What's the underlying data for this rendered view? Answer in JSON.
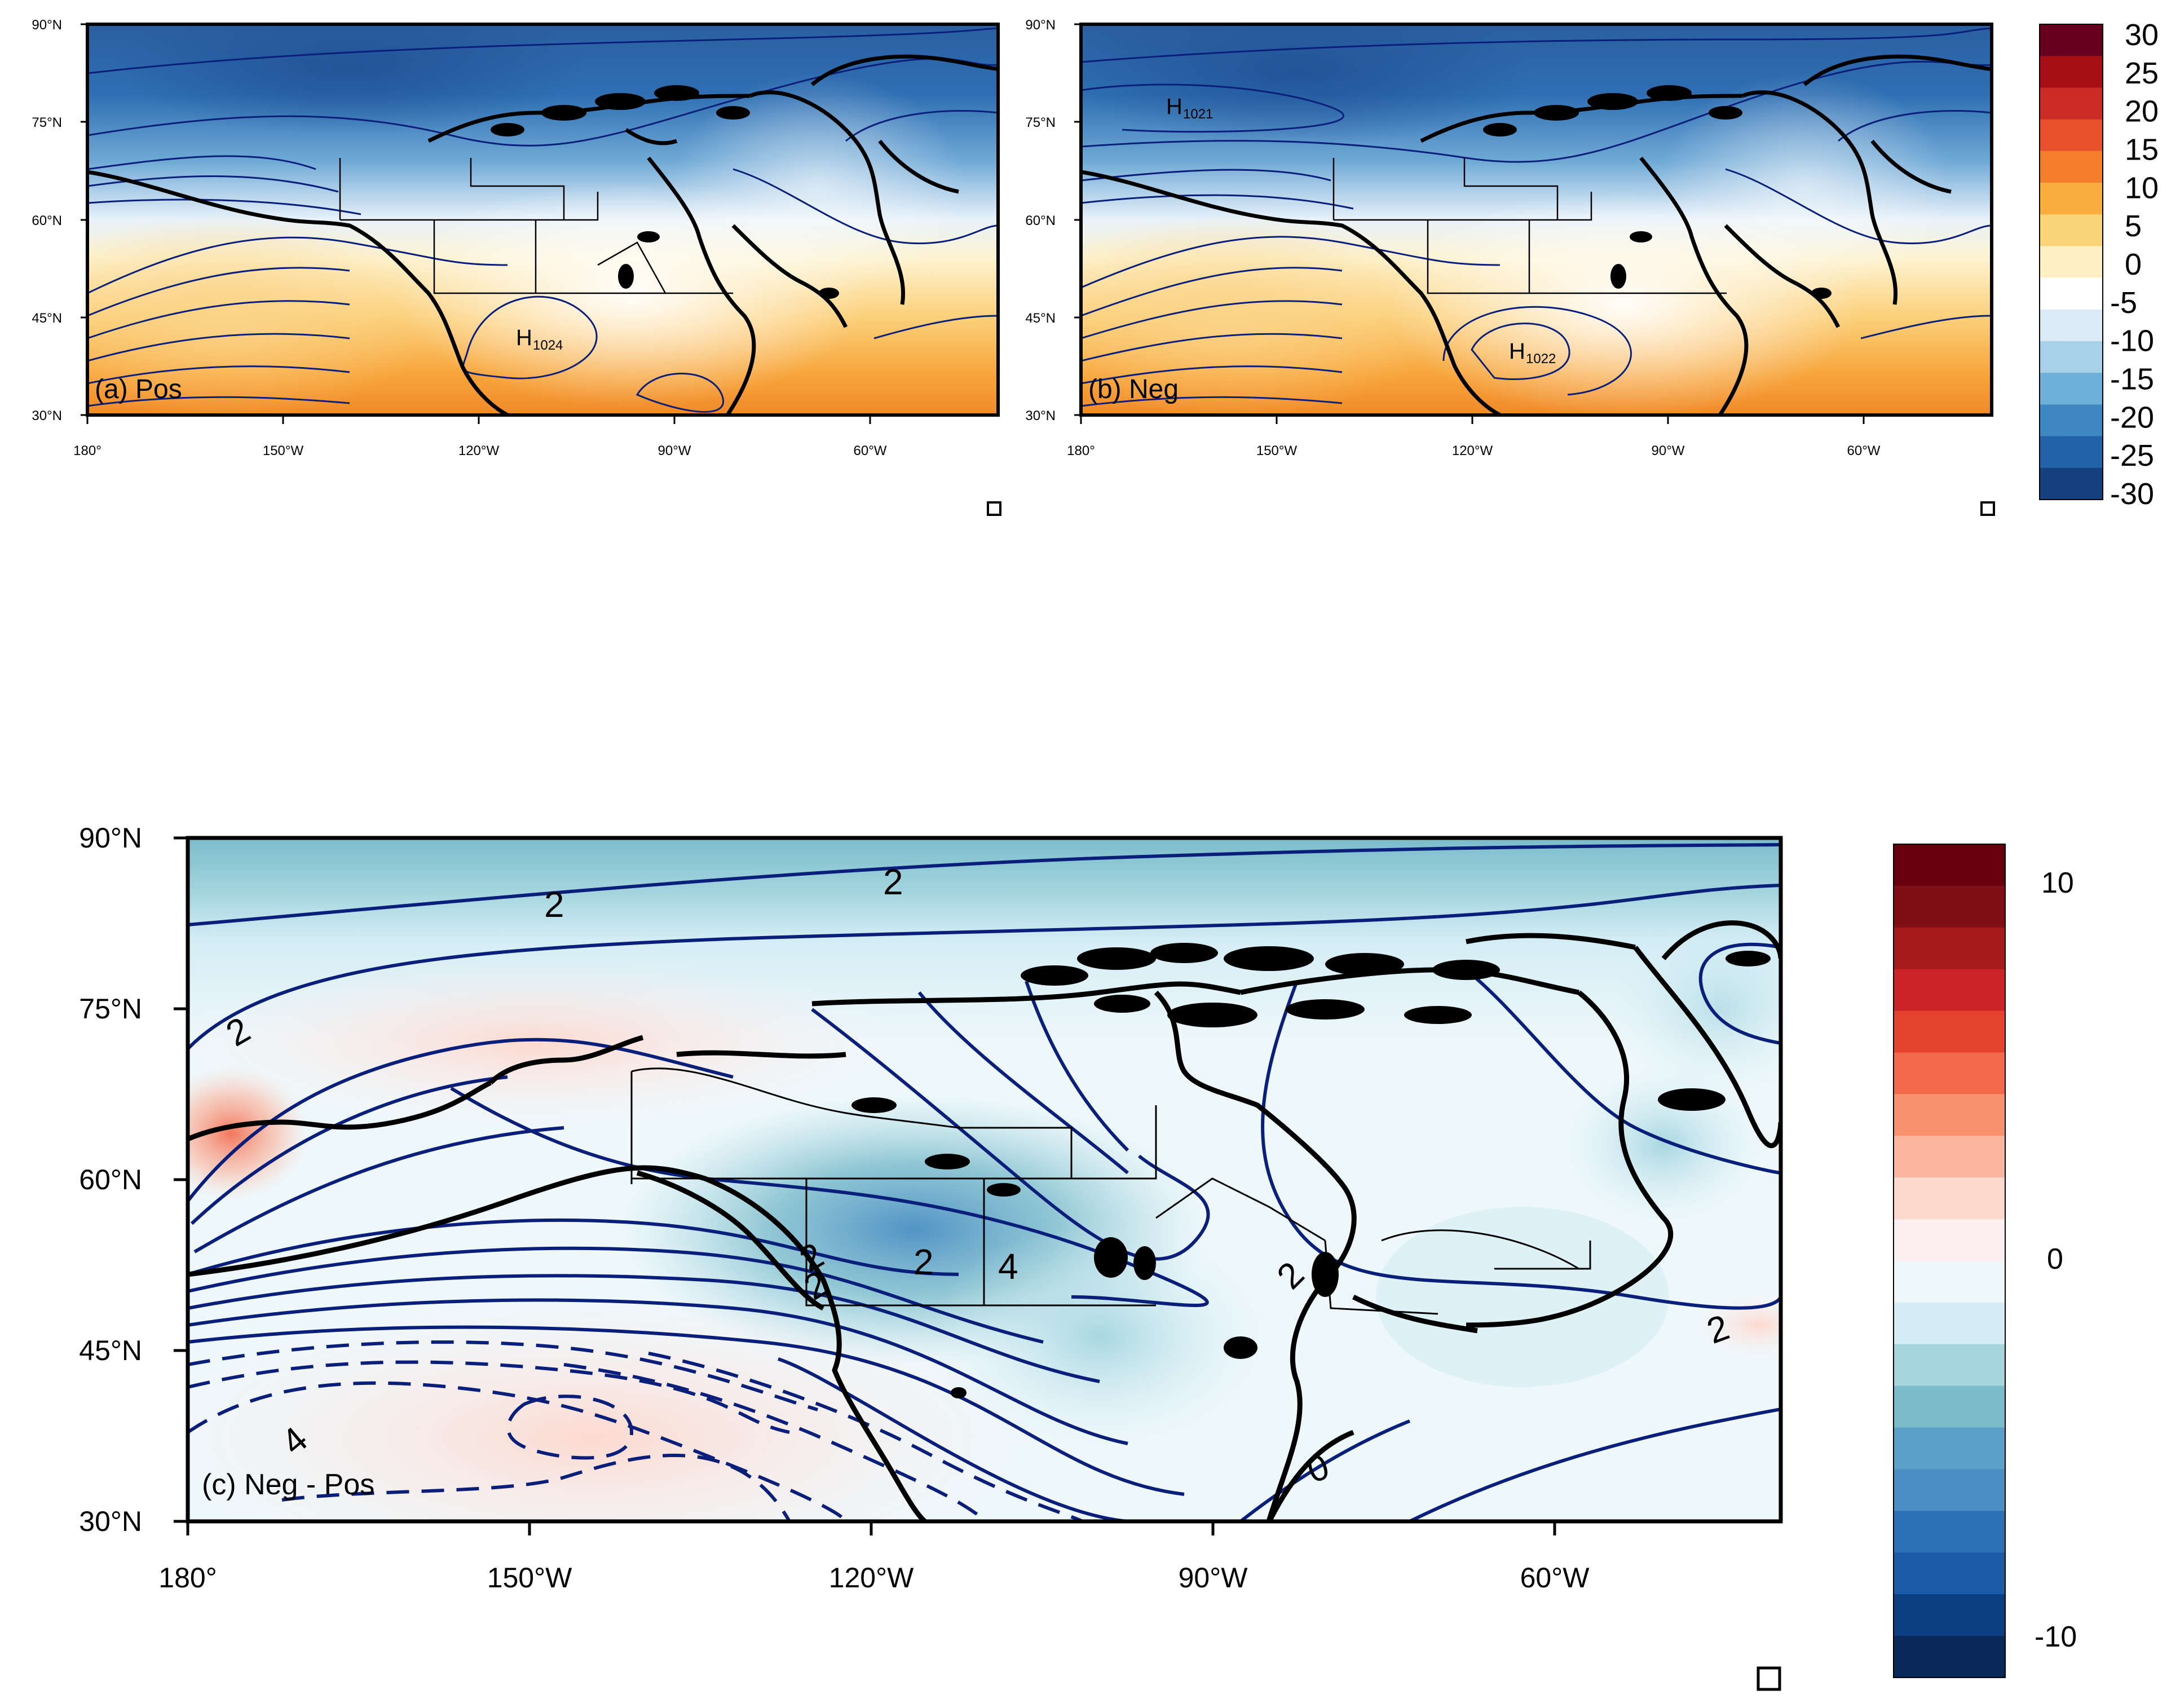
{
  "panels": {
    "a": {
      "label": "(a) Pos",
      "high_label": "H",
      "high_value": "1024"
    },
    "b": {
      "label": "(b) Neg",
      "high_labels": [
        {
          "label": "H",
          "value": "1021"
        },
        {
          "label": "H",
          "value": "1022"
        }
      ]
    },
    "c": {
      "label": "(c) Neg - Pos"
    }
  },
  "small_axes": {
    "lat_ticks": [
      "90°N",
      "75°N",
      "60°N",
      "45°N",
      "30°N"
    ],
    "lon_ticks": [
      "180°",
      "150°W",
      "120°W",
      "90°W",
      "60°W"
    ]
  },
  "large_axes": {
    "lat_ticks": [
      "90°N",
      "75°N",
      "60°N",
      "45°N",
      "30°N"
    ],
    "lon_ticks": [
      "180°",
      "150°W",
      "120°W",
      "90°W",
      "60°W"
    ]
  },
  "colorbar_top": {
    "labels": [
      "30",
      "25",
      "20",
      "15",
      "10",
      "5",
      "0",
      "-5",
      "-10",
      "-15",
      "-20",
      "-25",
      "-30"
    ],
    "colors": [
      "#67001f",
      "#a50f15",
      "#cb2d26",
      "#e8502c",
      "#f47e2c",
      "#f9ad3d",
      "#fcd478",
      "#fdf0c2",
      "#ffffff",
      "#dcecf6",
      "#a8d0e8",
      "#6fb0d9",
      "#3f87c2",
      "#2262a6",
      "#163f7d"
    ]
  },
  "colorbar_bottom": {
    "labels": [
      "10",
      "0",
      "-10"
    ],
    "colors": [
      "#67000d",
      "#7f0f14",
      "#a61a1c",
      "#cb2327",
      "#e6432f",
      "#f2694a",
      "#f7916e",
      "#fbb6a0",
      "#fdd8cd",
      "#fdeef0",
      "#eef8fb",
      "#d4edf5",
      "#a4d5df",
      "#7bbccb",
      "#5aa0c8",
      "#4a8ec3",
      "#2d72b5",
      "#1b5ca8",
      "#0c3f82",
      "#08295a"
    ]
  },
  "contour_labels_c": [
    "2",
    "2",
    "2",
    "2",
    "2",
    "4",
    "2",
    "2",
    "0",
    "2",
    "4"
  ],
  "colors": {
    "contour": "#0a1f7a",
    "coast": "#000000"
  }
}
